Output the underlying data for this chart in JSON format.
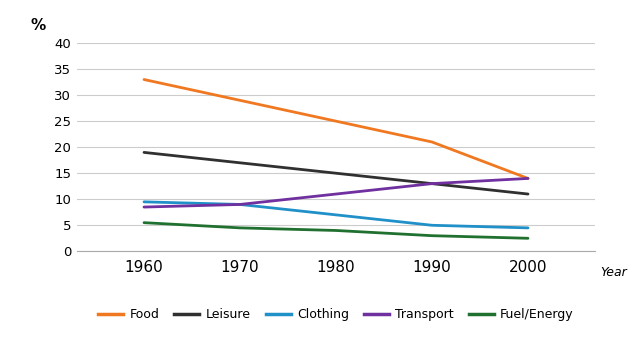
{
  "years": [
    1960,
    1970,
    1980,
    1990,
    2000
  ],
  "series": {
    "Food": [
      33,
      29,
      25,
      21,
      14
    ],
    "Leisure": [
      19,
      17,
      15,
      13,
      11
    ],
    "Clothing": [
      9.5,
      9,
      7,
      5,
      4.5
    ],
    "Transport": [
      8.5,
      9,
      11,
      13,
      14
    ],
    "Fuel/Energy": [
      5.5,
      4.5,
      4,
      3,
      2.5
    ]
  },
  "colors": {
    "Food": "#f07820",
    "Leisure": "#303030",
    "Clothing": "#2090c8",
    "Transport": "#7030a0",
    "Fuel/Energy": "#207030"
  },
  "ylim": [
    0,
    40
  ],
  "yticks": [
    0,
    5,
    10,
    15,
    20,
    25,
    30,
    35,
    40
  ],
  "xticks": [
    1960,
    1970,
    1980,
    1990,
    2000
  ],
  "xlim": [
    1953,
    2007
  ],
  "ylabel": "%",
  "xlabel": "Year",
  "background_color": "#ffffff",
  "grid_color": "#cccccc",
  "linewidth": 2.0
}
